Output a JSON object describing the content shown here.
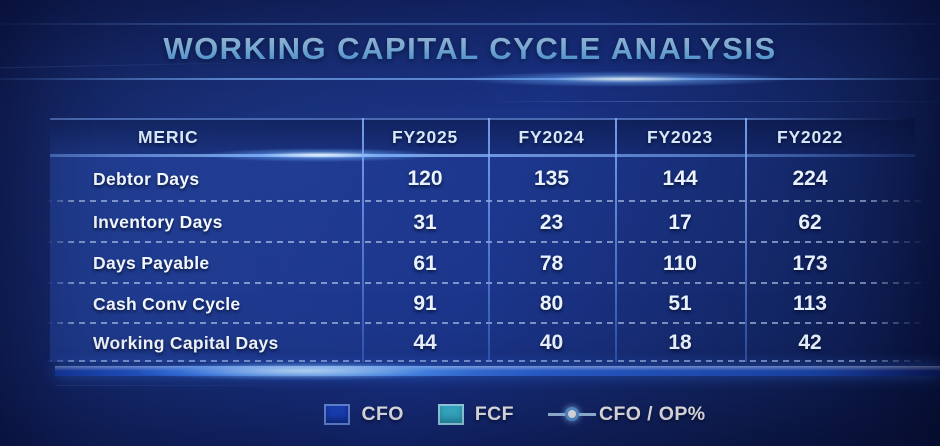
{
  "title": "WORKING CAPITAL CYCLE ANALYSIS",
  "chart_data": {
    "type": "table",
    "title": "WORKING CAPITAL CYCLE ANALYSIS",
    "columns": [
      "MERIC",
      "FY2025",
      "FY2024",
      "FY2023",
      "FY2022"
    ],
    "rows": [
      [
        "Debtor Days",
        "120",
        "135",
        "144",
        "224"
      ],
      [
        "Inventory Days",
        "31",
        "23",
        "17",
        "62"
      ],
      [
        "Days Payable",
        "61",
        "78",
        "110",
        "173"
      ],
      [
        "Cash Conv Cycle",
        "91",
        "80",
        "51",
        "113"
      ],
      [
        "Working Capital Days",
        "44",
        "40",
        "18",
        "42"
      ]
    ],
    "legend_position": "bottom"
  },
  "legend": [
    {
      "label": "CFO",
      "swatch": "blue-square",
      "color": "#1d49cc"
    },
    {
      "label": "FCF",
      "swatch": "cyan-square",
      "color": "#3ec4de"
    },
    {
      "label": "CFO / OP%",
      "swatch": "line-dot",
      "color": "#a9cdf2"
    }
  ],
  "colors": {
    "background": "#13266b",
    "accent_glow": "#4f92f2",
    "title_text": "#8cc4f0",
    "header_text": "#d6e8f9",
    "value_text": "#eaf3fd"
  }
}
